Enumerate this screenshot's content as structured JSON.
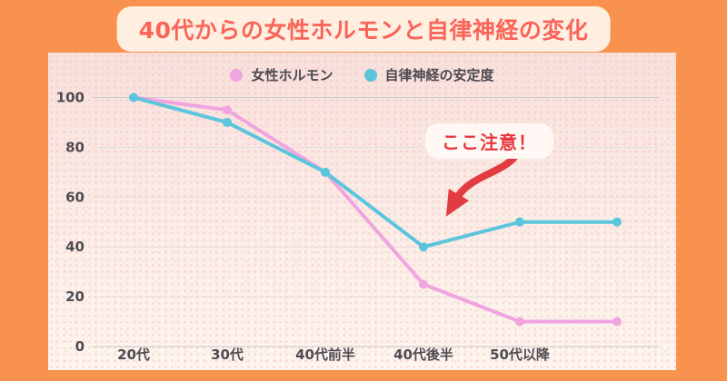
{
  "page": {
    "bg_color": "#F9914F"
  },
  "header": {
    "title": "40代からの女性ホルモンと自律神経の変化",
    "text_color": "#FA6459",
    "pill_bg": "#FFEFE1"
  },
  "annotation": {
    "text": "ここ注意！",
    "text_color": "#E8363D",
    "box_bg": "#FFF8F4",
    "arrow_color": "#E23C43"
  },
  "chart_data": {
    "type": "line",
    "categories": [
      "20代",
      "30代",
      "40代前半",
      "40代後半",
      "50代以降",
      ""
    ],
    "series": [
      {
        "name": "女性ホルモン",
        "color": "#F0A5E0",
        "values": [
          100,
          95,
          70,
          25,
          10,
          10
        ]
      },
      {
        "name": "自律神経の安定度",
        "color": "#5BC5DC",
        "values": [
          100,
          90,
          70,
          40,
          50,
          50
        ]
      }
    ],
    "title": "40代からの女性ホルモンと自律神経の変化",
    "xlabel": "",
    "ylabel": "",
    "ylim": [
      0,
      100
    ],
    "yticks": [
      0,
      20,
      40,
      60,
      80,
      100
    ],
    "grid": true,
    "legend_position": "top-center",
    "annotation_text": "ここ注意！"
  }
}
